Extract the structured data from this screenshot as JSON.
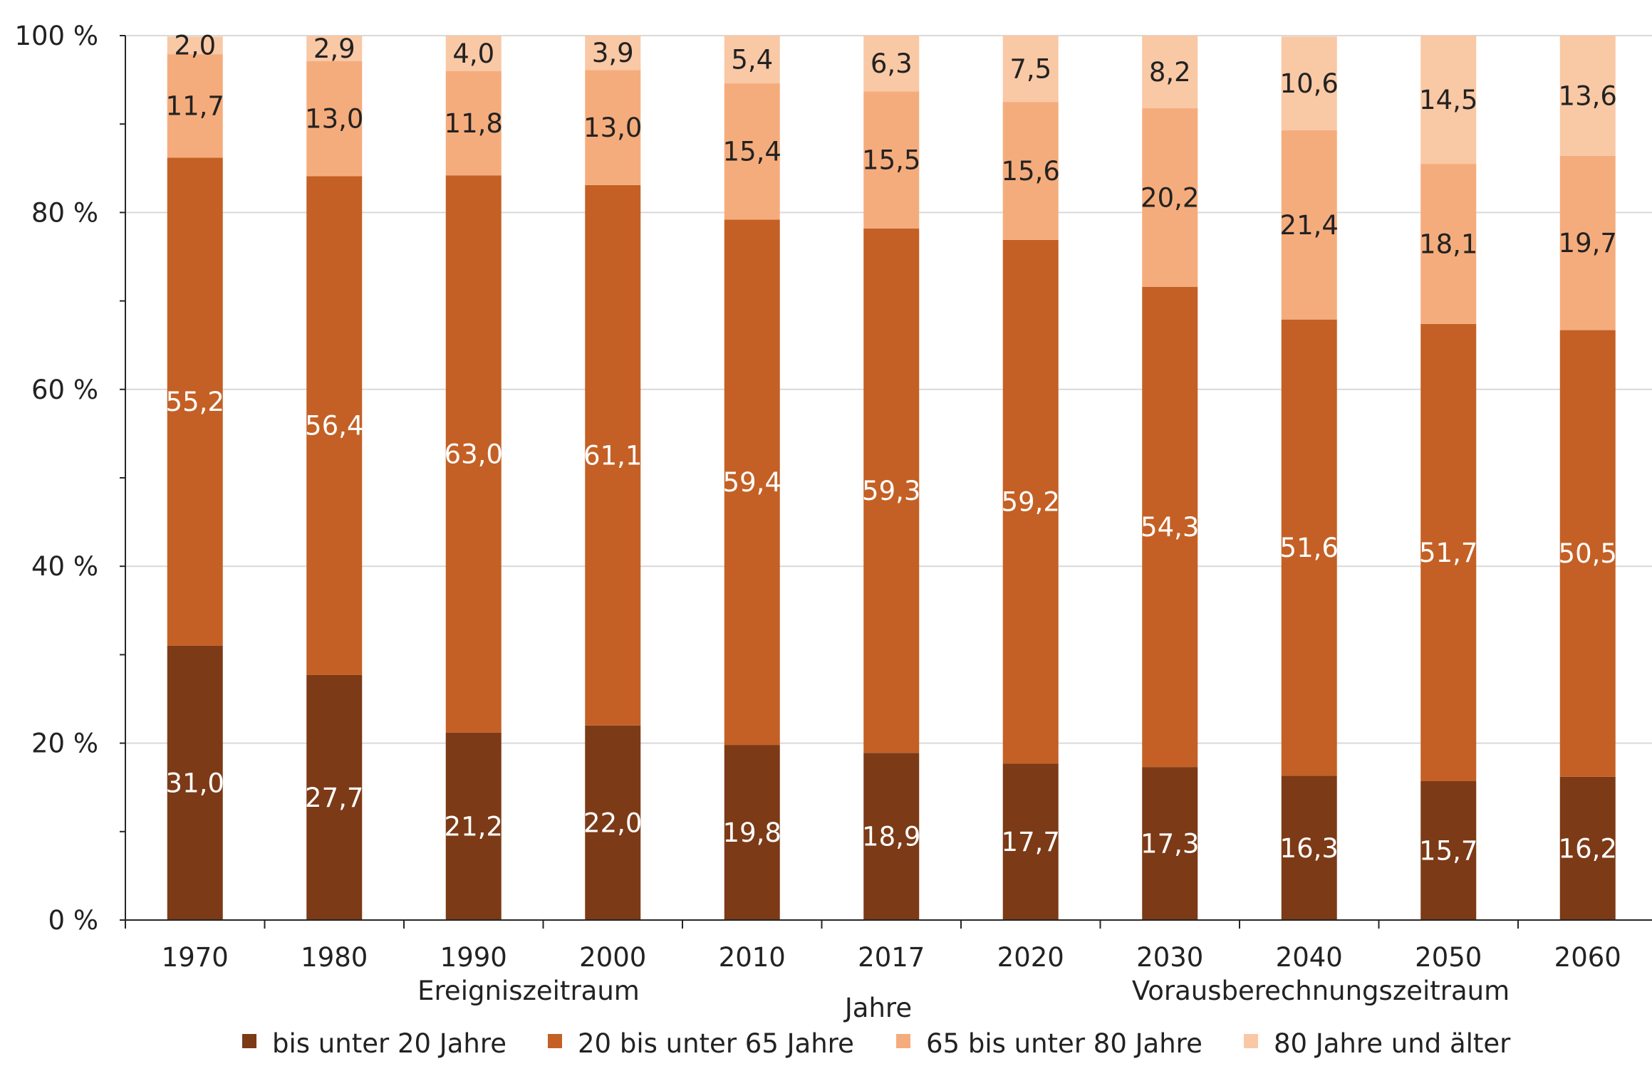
{
  "chart_data": {
    "type": "bar",
    "stacked": true,
    "orientation": "vertical",
    "categories": [
      "1970",
      "1980",
      "1990",
      "2000",
      "2010",
      "2017",
      "2020",
      "2030",
      "2040",
      "2050",
      "2060"
    ],
    "series": [
      {
        "name": "bis unter 20 Jahre",
        "color": "#7c3a17",
        "label_color": "#ffffff",
        "values": [
          31.0,
          27.7,
          21.2,
          22.0,
          19.8,
          18.9,
          17.7,
          17.3,
          16.3,
          15.7,
          16.2
        ],
        "labels": [
          "31,0",
          "27,7",
          "21,2",
          "22,0",
          "19,8",
          "18,9",
          "17,7",
          "17,3",
          "16,3",
          "15,7",
          "16,2"
        ]
      },
      {
        "name": "20 bis unter 65 Jahre",
        "color": "#c46025",
        "label_color": "#ffffff",
        "values": [
          55.2,
          56.4,
          63.0,
          61.1,
          59.4,
          59.3,
          59.2,
          54.3,
          51.6,
          51.7,
          50.5
        ],
        "labels": [
          "55,2",
          "56,4",
          "63,0",
          "61,1",
          "59,4",
          "59,3",
          "59,2",
          "54,3",
          "51,6",
          "51,7",
          "50,5"
        ]
      },
      {
        "name": "65 bis unter 80 Jahre",
        "color": "#f5ac7c",
        "label_color": "#222222",
        "values": [
          11.7,
          13.0,
          11.8,
          13.0,
          15.4,
          15.5,
          15.6,
          20.2,
          21.4,
          18.1,
          19.7
        ],
        "labels": [
          "11,7",
          "13,0",
          "11,8",
          "13,0",
          "15,4",
          "15,5",
          "15,6",
          "20,2",
          "21,4",
          "18,1",
          "19,7"
        ]
      },
      {
        "name": "80 Jahre und älter",
        "color": "#f9c8a5",
        "label_color": "#222222",
        "values": [
          2.0,
          2.9,
          4.0,
          3.9,
          5.4,
          6.3,
          7.5,
          8.2,
          10.6,
          14.5,
          13.6
        ],
        "labels": [
          "2,0",
          "2,9",
          "4,0",
          "3,9",
          "5,4",
          "6,3",
          "7,5",
          "8,2",
          "10,6",
          "14,5",
          "13,6"
        ]
      }
    ],
    "y_axis": {
      "ticks": [
        0,
        20,
        40,
        60,
        80,
        100
      ],
      "tick_labels": [
        "0 %",
        "20 %",
        "40 %",
        "60 %",
        "80 %",
        "100 %"
      ],
      "ylim": [
        0,
        100
      ],
      "grid": true
    },
    "xlabel": "Jahre",
    "period_labels": [
      {
        "text": "Ereigniszeitraum",
        "from": "1970",
        "to": "2017"
      },
      {
        "text": "Vorausberechnungszeitraum",
        "from": "2030",
        "to": "2060"
      }
    ],
    "legend": {
      "position": "bottom",
      "entries": [
        "bis unter 20 Jahre",
        "20 bis unter 65 Jahre",
        "65 bis unter 80 Jahre",
        "80 Jahre und älter"
      ]
    },
    "colors": {
      "grid": "#d9d9d9",
      "axis": "#262626"
    }
  }
}
